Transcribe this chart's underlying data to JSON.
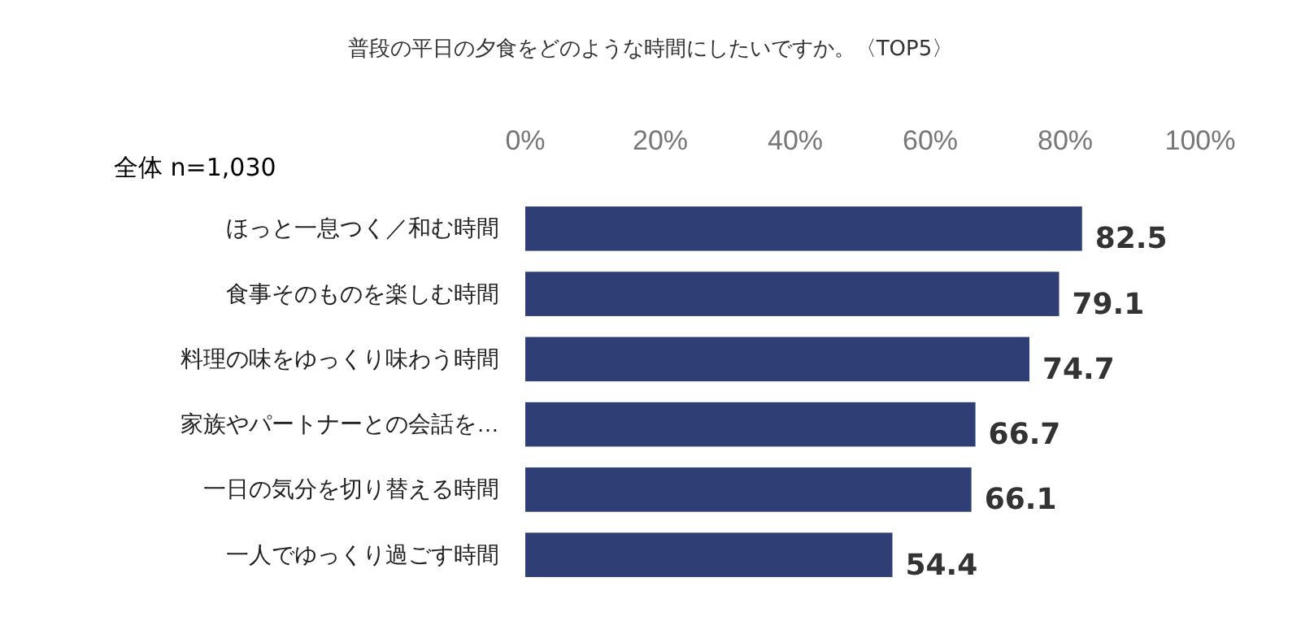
{
  "chart_data": {
    "type": "bar",
    "orientation": "horizontal",
    "title": "普段の平日の夕食をどのような時間にしたいですか。〈TOP5〉",
    "annotations": [
      "全体 n=1,030"
    ],
    "categories": [
      "ほっと一息つく／和む時間",
      "食事そのものを楽しむ時間",
      "料理の味をゆっくり味わう時間",
      "家族やパートナーとの会話を…",
      "一日の気分を切り替える時間",
      "一人でゆっくり過ごす時間"
    ],
    "values": [
      82.5,
      79.1,
      74.7,
      66.7,
      66.1,
      54.4
    ],
    "color": "#2f3f75",
    "xlim": [
      0,
      100
    ],
    "xticks": [
      {
        "value": 0,
        "label": "0%"
      },
      {
        "value": 20,
        "label": "20%"
      },
      {
        "value": 40,
        "label": "40%"
      },
      {
        "value": 60,
        "label": "60%"
      },
      {
        "value": 80,
        "label": "80%"
      },
      {
        "value": 100,
        "label": "100%"
      }
    ],
    "data_labels": true,
    "grid": false
  }
}
